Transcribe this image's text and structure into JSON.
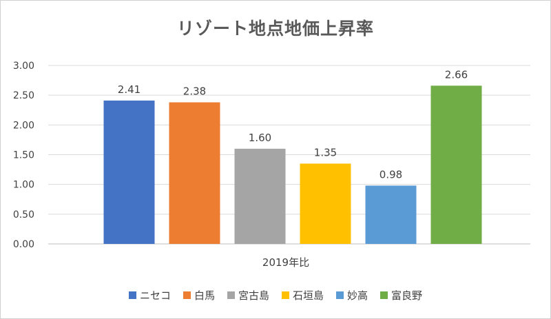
{
  "chart_data": {
    "type": "bar",
    "title": "リゾート地点地価上昇率",
    "categories": [
      "2019年比"
    ],
    "series": [
      {
        "name": "ニセコ",
        "values": [
          2.41
        ],
        "color": "#4472C4"
      },
      {
        "name": "白馬",
        "values": [
          2.38
        ],
        "color": "#ED7D31"
      },
      {
        "name": "宮古島",
        "values": [
          1.6
        ],
        "color": "#A5A5A5"
      },
      {
        "name": "石垣島",
        "values": [
          1.35
        ],
        "color": "#FFC000"
      },
      {
        "name": "妙高",
        "values": [
          0.98
        ],
        "color": "#5B9BD5"
      },
      {
        "name": "富良野",
        "values": [
          2.66
        ],
        "color": "#70AD47"
      }
    ],
    "data_labels": [
      "2.41",
      "2.38",
      "1.60",
      "1.35",
      "0.98",
      "2.66"
    ],
    "y_ticks": [
      "0.00",
      "0.50",
      "1.00",
      "1.50",
      "2.00",
      "2.50",
      "3.00"
    ],
    "ylim": [
      0,
      3
    ],
    "grid": true,
    "legend_position": "bottom"
  }
}
